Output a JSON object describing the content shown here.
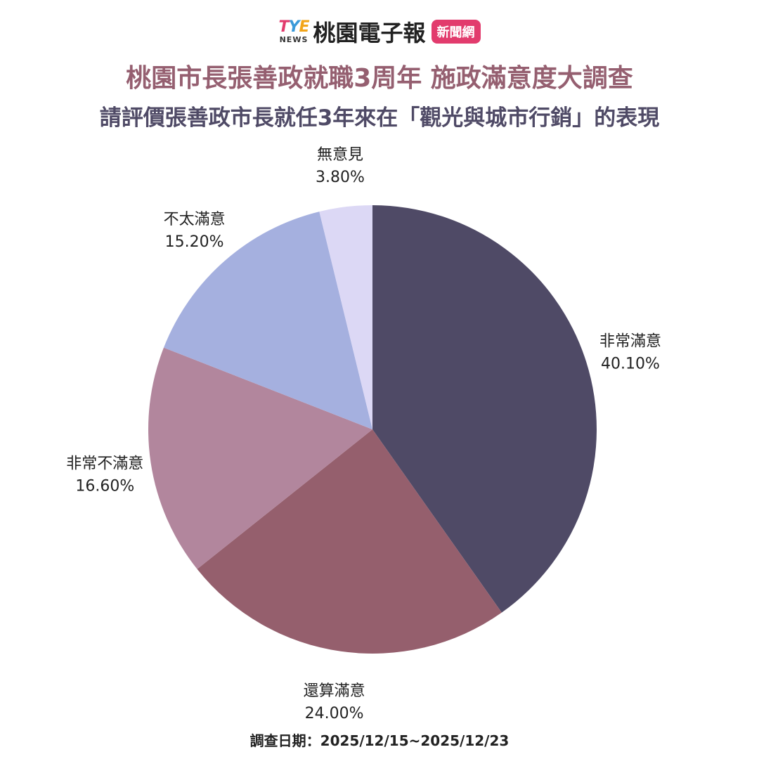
{
  "brand": {
    "logo_main_t": "T",
    "logo_main_y": "Y",
    "logo_main_e": "E",
    "logo_sub": "NEWS",
    "name": "桃園電子報",
    "tag": "新聞網"
  },
  "header": {
    "title": "桃園市長張善政就職3周年  施政滿意度大調查",
    "subtitle": "請評價張善政市長就任3年來在「觀光與城市行銷」的表現"
  },
  "footer": {
    "survey_date": "調查日期：2025/12/15~2025/12/23"
  },
  "chart_data": {
    "type": "pie",
    "title": "桃園市長張善政就職3周年  施政滿意度大調查",
    "subtitle": "請評價張善政市長就任3年來在「觀光與城市行銷」的表現",
    "slices": [
      {
        "label": "非常滿意",
        "value": 40.1,
        "display": "40.10%",
        "color": "#4f4a66"
      },
      {
        "label": "還算滿意",
        "value": 24.0,
        "display": "24.00%",
        "color": "#955f6d"
      },
      {
        "label": "非常不滿意",
        "value": 16.6,
        "display": "16.60%",
        "color": "#b2869d"
      },
      {
        "label": "不太滿意",
        "value": 15.2,
        "display": "15.20%",
        "color": "#a5b0df"
      },
      {
        "label": "無意見",
        "value": 3.8,
        "display": "3.80%",
        "color": "#dcd8f5"
      }
    ],
    "start": "12 o'clock",
    "direction": "clockwise",
    "legend": "none",
    "labels": "outside"
  }
}
